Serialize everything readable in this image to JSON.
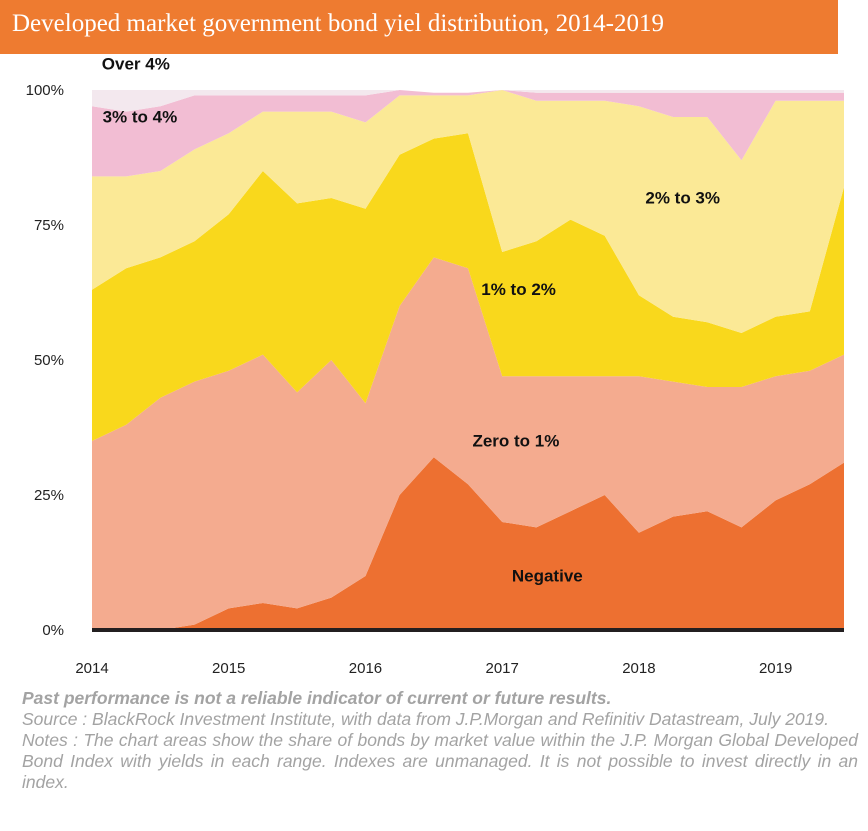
{
  "header": {
    "title": "Developed market government bond yiel distribution, 2014-2019"
  },
  "chart_data": {
    "type": "area",
    "stacked": true,
    "x": [
      2014.0,
      2014.25,
      2014.5,
      2014.75,
      2015.0,
      2015.25,
      2015.5,
      2015.75,
      2016.0,
      2016.25,
      2016.5,
      2016.75,
      2017.0,
      2017.25,
      2017.5,
      2017.75,
      2018.0,
      2018.25,
      2018.5,
      2018.75,
      2019.0,
      2019.25,
      2019.5
    ],
    "series": [
      {
        "name": "Negative",
        "color": "#ed7031",
        "values": [
          0,
          0,
          0,
          1,
          4,
          5,
          4,
          6,
          10,
          25,
          32,
          27,
          20,
          19,
          22,
          25,
          18,
          21,
          22,
          19,
          24,
          27,
          31
        ]
      },
      {
        "name": "Zero to 1%",
        "color": "#f4ab8f",
        "values": [
          35,
          38,
          43,
          45,
          44,
          46,
          40,
          44,
          32,
          35,
          37,
          40,
          27,
          28,
          25,
          22,
          29,
          25,
          23,
          26,
          23,
          21,
          20
        ]
      },
      {
        "name": "1% to 2%",
        "color": "#f9d81c",
        "values": [
          28,
          29,
          26,
          26,
          29,
          34,
          35,
          30,
          36,
          28,
          22,
          25,
          23,
          25,
          29,
          26,
          15,
          12,
          12,
          10,
          11,
          11,
          31
        ]
      },
      {
        "name": "2% to 3%",
        "color": "#fbe996",
        "values": [
          21,
          17,
          16,
          17,
          15,
          11,
          17,
          16,
          16,
          11,
          8,
          7,
          30,
          26,
          22,
          25,
          35,
          37,
          38,
          32,
          40,
          39,
          16
        ]
      },
      {
        "name": "3% to 4%",
        "color": "#f2bdd3",
        "values": [
          13,
          12,
          12,
          10,
          7,
          3,
          3,
          3,
          5,
          1,
          0.5,
          0.5,
          0,
          1.5,
          1.5,
          1.5,
          2.5,
          4.5,
          4.5,
          12.5,
          1.5,
          1.5,
          1.5
        ]
      },
      {
        "name": "Over 4%",
        "color": "#f3e8ee",
        "values": [
          3,
          4,
          3,
          1,
          1,
          1,
          1,
          1,
          1,
          0,
          0,
          0,
          0,
          0.5,
          0.5,
          0.5,
          0.5,
          0.5,
          0.5,
          0.5,
          0.5,
          0.5,
          0.5
        ]
      }
    ],
    "xlim": [
      2014,
      2019.5
    ],
    "ylim": [
      0,
      100
    ],
    "yticks": [
      "0%",
      "25%",
      "50%",
      "75%",
      "100%"
    ],
    "xticks": [
      "2014",
      "2015",
      "2016",
      "2017",
      "2018",
      "2019"
    ],
    "grid": false,
    "legend": "inline labels"
  },
  "footer": {
    "disclaimer": "Past performance is not a reliable indicator of current or future results.",
    "source": "Source : BlackRock Investment Institute, with data from J.P.Morgan and Refinitiv Datastream, July 2019.",
    "notes": "Notes : The chart areas show the share of bonds by market value within the J.P. Morgan Global Developed Bond Index with yields in each range. Indexes are unmanaged. It is not possible to invest directly in an index."
  }
}
